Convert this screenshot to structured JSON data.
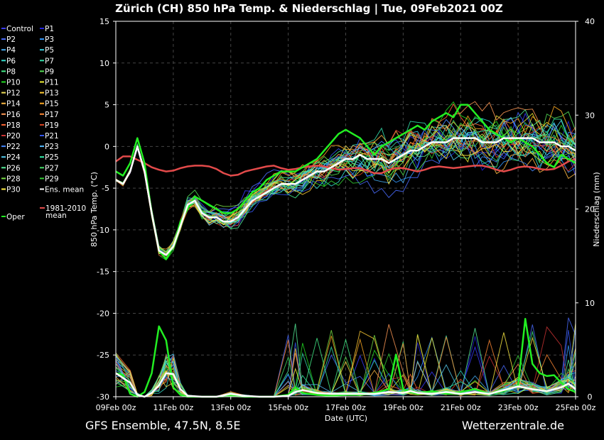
{
  "chart_data": {
    "type": "line",
    "title": "Zürich  (CH)  850 hPa Temp. & Niederschlag | Tue, 09Feb2021 00Z",
    "xlabel": "Date (UTC)",
    "ylabel": "850 hPa Temp. (°C)",
    "y2label": "Niederschlag (mm)",
    "xlim": [
      0,
      384
    ],
    "ylim": [
      -30,
      15
    ],
    "y2lim": [
      0,
      40
    ],
    "x_ticks": [
      {
        "label": "09Feb 00z",
        "x": 0
      },
      {
        "label": "11Feb 00z",
        "x": 48
      },
      {
        "label": "13Feb 00z",
        "x": 96
      },
      {
        "label": "15Feb 00z",
        "x": 144
      },
      {
        "label": "17Feb 00z",
        "x": 192
      },
      {
        "label": "19Feb 00z",
        "x": 240
      },
      {
        "label": "21Feb 00z",
        "x": 288
      },
      {
        "label": "23Feb 00z",
        "x": 336
      },
      {
        "label": "25Feb 00z",
        "x": 384
      }
    ],
    "y_ticks": [
      "15",
      "10",
      "5",
      "0",
      "-5",
      "-10",
      "-15",
      "-20",
      "-25",
      "-30"
    ],
    "y_tick_values": [
      15,
      10,
      5,
      0,
      -5,
      -10,
      -15,
      -20,
      -25,
      -30
    ],
    "y2_ticks": [
      "40",
      "30",
      "20",
      "10",
      "0"
    ],
    "y2_tick_values": [
      40,
      30,
      20,
      10,
      0
    ],
    "grid": true,
    "legend": {
      "members": [
        {
          "name": "Control",
          "color": "#3a3aff"
        },
        {
          "name": "P1",
          "color": "#2222dd"
        },
        {
          "name": "P2",
          "color": "#4a6cff"
        },
        {
          "name": "P3",
          "color": "#3399ff"
        },
        {
          "name": "P4",
          "color": "#44aaee"
        },
        {
          "name": "P5",
          "color": "#33ccdd"
        },
        {
          "name": "P6",
          "color": "#33ddcc"
        },
        {
          "name": "P7",
          "color": "#33ddaa"
        },
        {
          "name": "P8",
          "color": "#44ee88"
        },
        {
          "name": "P9",
          "color": "#55dd55"
        },
        {
          "name": "P10",
          "color": "#22dd22"
        },
        {
          "name": "P11",
          "color": "#eeee33"
        },
        {
          "name": "P12",
          "color": "#eedd55"
        },
        {
          "name": "P13",
          "color": "#ffcc33"
        },
        {
          "name": "P14",
          "color": "#ffbb44"
        },
        {
          "name": "P15",
          "color": "#ffaa22"
        },
        {
          "name": "P16",
          "color": "#ff9955"
        },
        {
          "name": "P17",
          "color": "#ff8833"
        },
        {
          "name": "P18",
          "color": "#ff6633"
        },
        {
          "name": "P19",
          "color": "#dd4422"
        },
        {
          "name": "P20",
          "color": "#cc3333"
        },
        {
          "name": "P21",
          "color": "#3355ee"
        },
        {
          "name": "P22",
          "color": "#4488ff"
        },
        {
          "name": "P23",
          "color": "#55bbff"
        },
        {
          "name": "P24",
          "color": "#55ccee"
        },
        {
          "name": "P25",
          "color": "#33eeaa"
        },
        {
          "name": "P26",
          "color": "#55ee99"
        },
        {
          "name": "P27",
          "color": "#44dd66"
        },
        {
          "name": "P28",
          "color": "#77dd44"
        },
        {
          "name": "P29",
          "color": "#33cc33"
        },
        {
          "name": "P30",
          "color": "#ffee44"
        },
        {
          "name": "Ens. mean",
          "color": "#ffffff"
        }
      ],
      "climate": {
        "line1": "1981-2010",
        "line2": "mean",
        "color": "#e34a4a"
      },
      "oper": {
        "name": "Oper",
        "color": "#22ee22"
      }
    },
    "series": [
      {
        "name": "Ens. mean",
        "kind": "temp",
        "x": [
          0,
          6,
          12,
          18,
          24,
          30,
          36,
          42,
          48,
          54,
          60,
          66,
          72,
          78,
          84,
          90,
          96,
          102,
          108,
          114,
          120,
          126,
          132,
          138,
          144,
          150,
          156,
          162,
          168,
          174,
          180,
          186,
          192,
          198,
          204,
          210,
          216,
          222,
          228,
          234,
          240,
          246,
          252,
          258,
          264,
          270,
          276,
          282,
          288,
          294,
          300,
          306,
          312,
          318,
          324,
          330,
          336,
          342,
          348,
          354,
          360,
          366,
          372,
          378,
          384
        ],
        "values": [
          -4,
          -4.5,
          -3,
          0,
          -3,
          -8,
          -12.5,
          -13,
          -12,
          -9.5,
          -7,
          -6.5,
          -8,
          -8.5,
          -8.5,
          -9,
          -9,
          -8.5,
          -7.5,
          -6.5,
          -6,
          -5.5,
          -5,
          -4.5,
          -4.5,
          -4.5,
          -4,
          -3.5,
          -3,
          -3,
          -2.5,
          -2,
          -1.5,
          -1.5,
          -1,
          -1.5,
          -1.5,
          -1.5,
          -2,
          -1.5,
          -1,
          -0.5,
          -0.5,
          0,
          0.5,
          0.5,
          0.5,
          1,
          1,
          1,
          1,
          0.5,
          0.5,
          0.5,
          1,
          1,
          1,
          1,
          1,
          0.5,
          0.5,
          0.5,
          0,
          0,
          -0.5
        ]
      },
      {
        "name": "1981-2010 mean",
        "kind": "temp",
        "x": [
          0,
          6,
          12,
          18,
          24,
          30,
          36,
          42,
          48,
          54,
          60,
          66,
          72,
          78,
          84,
          90,
          96,
          102,
          108,
          114,
          120,
          126,
          132,
          138,
          144,
          150,
          156,
          162,
          168,
          174,
          180,
          186,
          192,
          198,
          204,
          210,
          216,
          222,
          228,
          234,
          240,
          246,
          252,
          258,
          264,
          270,
          276,
          282,
          288,
          294,
          300,
          306,
          312,
          318,
          324,
          330,
          336,
          342,
          348,
          354,
          360,
          366,
          372,
          378,
          384
        ],
        "values": [
          -1.8,
          -1.2,
          -1.2,
          -1.6,
          -2.0,
          -2.5,
          -2.8,
          -3.0,
          -2.9,
          -2.6,
          -2.4,
          -2.3,
          -2.3,
          -2.4,
          -2.7,
          -3.2,
          -3.5,
          -3.4,
          -3.0,
          -2.8,
          -2.6,
          -2.4,
          -2.3,
          -2.6,
          -2.8,
          -2.7,
          -2.5,
          -2.4,
          -2.3,
          -2.4,
          -2.6,
          -2.8,
          -2.7,
          -2.6,
          -2.6,
          -2.9,
          -3.2,
          -3.2,
          -2.8,
          -2.6,
          -2.6,
          -2.8,
          -3.0,
          -2.8,
          -2.5,
          -2.4,
          -2.5,
          -2.6,
          -2.5,
          -2.4,
          -2.3,
          -2.3,
          -2.5,
          -2.8,
          -3.0,
          -2.8,
          -2.5,
          -2.4,
          -2.5,
          -2.7,
          -2.8,
          -2.7,
          -2.3,
          -1.8,
          -1.5
        ]
      },
      {
        "name": "Oper",
        "kind": "temp",
        "x": [
          0,
          6,
          12,
          18,
          24,
          30,
          36,
          42,
          48,
          54,
          60,
          66,
          72,
          78,
          84,
          90,
          96,
          102,
          108,
          114,
          120,
          126,
          132,
          138,
          144,
          150,
          156,
          162,
          168,
          174,
          180,
          186,
          192,
          198,
          204,
          210,
          216,
          222,
          228,
          234,
          240,
          246,
          252,
          258,
          264,
          270,
          276,
          282,
          288,
          294,
          300,
          306,
          312,
          318,
          324,
          330,
          336,
          342,
          348,
          354,
          360,
          366,
          372,
          378,
          384
        ],
        "values": [
          -3,
          -3.5,
          -2,
          1,
          -2,
          -8,
          -12.5,
          -13.5,
          -12,
          -9,
          -7.5,
          -6,
          -6.5,
          -7,
          -7.5,
          -8,
          -8,
          -7.5,
          -6.5,
          -5.5,
          -5,
          -4,
          -3.5,
          -3,
          -3,
          -3,
          -2.5,
          -2,
          -1.5,
          -0.5,
          0.5,
          1.5,
          2,
          1.5,
          1,
          0,
          -1,
          0,
          0.5,
          1,
          1.5,
          2,
          2.5,
          2,
          3,
          3.5,
          4,
          3.5,
          5,
          5,
          4,
          3,
          2,
          1.5,
          1,
          0.5,
          1,
          0.5,
          0,
          -1,
          -2,
          -2.5,
          -1,
          -1.5,
          -2
        ]
      },
      {
        "name": "Ens. mean precip",
        "kind": "precip",
        "x": [
          0,
          12,
          18,
          24,
          30,
          36,
          42,
          48,
          54,
          60,
          72,
          84,
          96,
          108,
          120,
          132,
          144,
          150,
          156,
          168,
          180,
          192,
          204,
          216,
          228,
          240,
          246,
          252,
          264,
          276,
          288,
          300,
          312,
          324,
          336,
          348,
          360,
          372,
          378,
          384
        ],
        "values": [
          2.5,
          1.5,
          0.2,
          0,
          0.4,
          1.2,
          2.5,
          2.4,
          0.8,
          0.1,
          0,
          0,
          0.3,
          0.1,
          0,
          0,
          0.1,
          0.5,
          0.7,
          0.4,
          0.3,
          0.3,
          0.3,
          0.3,
          0.5,
          0.4,
          0.6,
          0.4,
          0.3,
          0.5,
          0.3,
          0.5,
          0.3,
          0.7,
          1.1,
          0.8,
          0.6,
          1.0,
          1.4,
          0.8
        ]
      },
      {
        "name": "Oper precip",
        "kind": "precip",
        "x": [
          0,
          6,
          12,
          18,
          24,
          30,
          36,
          42,
          48,
          54,
          60,
          72,
          84,
          96,
          108,
          120,
          132,
          144,
          150,
          156,
          168,
          180,
          192,
          204,
          216,
          228,
          234,
          240,
          246,
          252,
          264,
          276,
          288,
          300,
          312,
          324,
          336,
          342,
          348,
          354,
          360,
          366,
          372,
          378,
          384
        ],
        "values": [
          2.5,
          2.3,
          0.3,
          0,
          0.5,
          2.5,
          7.5,
          6,
          1,
          0.2,
          0,
          0,
          0,
          0.1,
          0,
          0,
          0,
          0.2,
          1.0,
          0.4,
          0.2,
          0.1,
          0.2,
          0.2,
          0.4,
          0.8,
          4.5,
          0.8,
          0.5,
          0.3,
          0.6,
          0.3,
          0.5,
          0.8,
          0.3,
          0.6,
          1.2,
          8.3,
          3.5,
          2.5,
          2.2,
          2.3,
          1.5,
          0.8,
          0.5
        ]
      }
    ]
  },
  "footer": {
    "left": "GFS Ensemble, 47.5N, 8.5E",
    "right": "Wetterzentrale.de"
  }
}
